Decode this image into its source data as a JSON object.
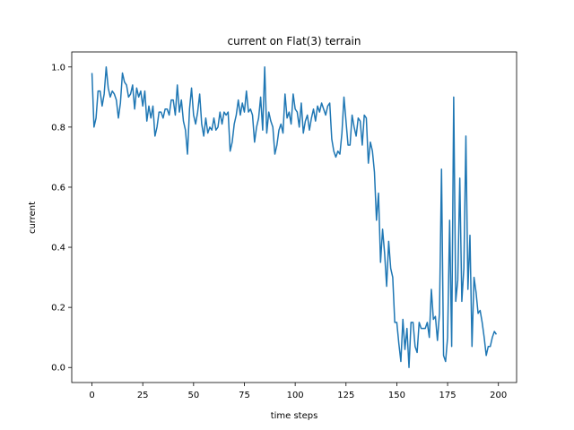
{
  "chart_data": {
    "type": "line",
    "title": "current on Flat(3) terrain",
    "xlabel": "time steps",
    "ylabel": "current",
    "color": "#1f77b4",
    "x": [
      0,
      1,
      2,
      3,
      4,
      5,
      6,
      7,
      8,
      9,
      10,
      11,
      12,
      13,
      14,
      15,
      16,
      17,
      18,
      19,
      20,
      21,
      22,
      23,
      24,
      25,
      26,
      27,
      28,
      29,
      30,
      31,
      32,
      33,
      34,
      35,
      36,
      37,
      38,
      39,
      40,
      41,
      42,
      43,
      44,
      45,
      46,
      47,
      48,
      49,
      50,
      51,
      52,
      53,
      54,
      55,
      56,
      57,
      58,
      59,
      60,
      61,
      62,
      63,
      64,
      65,
      66,
      67,
      68,
      69,
      70,
      71,
      72,
      73,
      74,
      75,
      76,
      77,
      78,
      79,
      80,
      81,
      82,
      83,
      84,
      85,
      86,
      87,
      88,
      89,
      90,
      91,
      92,
      93,
      94,
      95,
      96,
      97,
      98,
      99,
      100,
      101,
      102,
      103,
      104,
      105,
      106,
      107,
      108,
      109,
      110,
      111,
      112,
      113,
      114,
      115,
      116,
      117,
      118,
      119,
      120,
      121,
      122,
      123,
      124,
      125,
      126,
      127,
      128,
      129,
      130,
      131,
      132,
      133,
      134,
      135,
      136,
      137,
      138,
      139,
      140,
      141,
      142,
      143,
      144,
      145,
      146,
      147,
      148,
      149,
      150,
      151,
      152,
      153,
      154,
      155,
      156,
      157,
      158,
      159,
      160,
      161,
      162,
      163,
      164,
      165,
      166,
      167,
      168,
      169,
      170,
      171,
      172,
      173,
      174,
      175,
      176,
      177,
      178,
      179,
      180,
      181,
      182,
      183,
      184,
      185,
      186,
      187,
      188,
      189,
      190,
      191,
      192,
      193,
      194,
      195,
      196,
      197,
      198,
      199
    ],
    "values": [
      0.98,
      0.8,
      0.83,
      0.92,
      0.92,
      0.87,
      0.91,
      1.0,
      0.93,
      0.9,
      0.92,
      0.91,
      0.89,
      0.83,
      0.88,
      0.98,
      0.95,
      0.94,
      0.9,
      0.91,
      0.94,
      0.86,
      0.93,
      0.9,
      0.92,
      0.87,
      0.92,
      0.82,
      0.87,
      0.83,
      0.87,
      0.77,
      0.8,
      0.85,
      0.85,
      0.83,
      0.86,
      0.86,
      0.84,
      0.89,
      0.89,
      0.84,
      0.94,
      0.85,
      0.89,
      0.82,
      0.79,
      0.71,
      0.86,
      0.93,
      0.84,
      0.81,
      0.85,
      0.91,
      0.81,
      0.77,
      0.83,
      0.78,
      0.8,
      0.79,
      0.83,
      0.79,
      0.8,
      0.85,
      0.81,
      0.85,
      0.84,
      0.85,
      0.72,
      0.75,
      0.81,
      0.84,
      0.89,
      0.84,
      0.88,
      0.85,
      0.92,
      0.85,
      0.86,
      0.84,
      0.75,
      0.8,
      0.83,
      0.9,
      0.79,
      1.0,
      0.78,
      0.85,
      0.82,
      0.8,
      0.71,
      0.74,
      0.79,
      0.81,
      0.78,
      0.91,
      0.83,
      0.85,
      0.81,
      0.91,
      0.86,
      0.85,
      0.8,
      0.88,
      0.78,
      0.82,
      0.84,
      0.79,
      0.83,
      0.86,
      0.82,
      0.87,
      0.85,
      0.88,
      0.86,
      0.84,
      0.87,
      0.88,
      0.76,
      0.72,
      0.7,
      0.72,
      0.71,
      0.78,
      0.9,
      0.82,
      0.74,
      0.74,
      0.84,
      0.8,
      0.77,
      0.83,
      0.82,
      0.74,
      0.84,
      0.83,
      0.68,
      0.75,
      0.72,
      0.65,
      0.49,
      0.58,
      0.35,
      0.46,
      0.38,
      0.27,
      0.42,
      0.33,
      0.3,
      0.15,
      0.15,
      0.08,
      0.02,
      0.16,
      0.06,
      0.13,
      0.0,
      0.15,
      0.15,
      0.07,
      0.05,
      0.15,
      0.13,
      0.13,
      0.13,
      0.15,
      0.1,
      0.26,
      0.16,
      0.17,
      0.09,
      0.18,
      0.66,
      0.04,
      0.02,
      0.1,
      0.49,
      0.07,
      0.9,
      0.22,
      0.29,
      0.63,
      0.22,
      0.33,
      0.77,
      0.26,
      0.44,
      0.07,
      0.3,
      0.25,
      0.18,
      0.19,
      0.15,
      0.1,
      0.04,
      0.07,
      0.07,
      0.1,
      0.12,
      0.11
    ],
    "xlim": [
      -9.95,
      208.95
    ],
    "xticks": [
      0,
      25,
      50,
      75,
      100,
      125,
      150,
      175,
      200
    ],
    "ylim": [
      -0.05,
      1.05
    ],
    "yticks": [
      {
        "value": 0,
        "label": "0.0"
      },
      0.2,
      0.4,
      0.6,
      0.8,
      {
        "value": 1,
        "label": "1.0"
      }
    ]
  }
}
